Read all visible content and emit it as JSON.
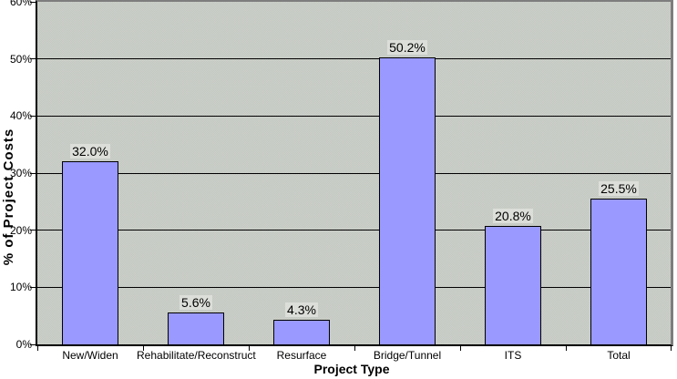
{
  "chart_data": {
    "type": "bar",
    "title": "",
    "xlabel": "Project Type",
    "ylabel": "% of Project Costs",
    "categories": [
      "New/Widen",
      "Rehabilitate/Reconstruct",
      "Resurface",
      "Bridge/Tunnel",
      "ITS",
      "Total"
    ],
    "values": [
      32.0,
      5.6,
      4.3,
      50.2,
      20.8,
      25.5
    ],
    "data_labels": [
      "32.0%",
      "5.6%",
      "4.3%",
      "50.2%",
      "20.8%",
      "25.5%"
    ],
    "y_ticks": [
      "0%",
      "10%",
      "20%",
      "30%",
      "40%",
      "50%",
      "60%"
    ],
    "y_tick_values": [
      0,
      10,
      20,
      30,
      40,
      50,
      60
    ],
    "gridline_values": [
      10,
      20,
      30,
      40,
      50
    ],
    "ylim": [
      0,
      60
    ],
    "grid": true,
    "legend": "none",
    "colors": {
      "bar_fill": "#9999FF",
      "bar_border": "#000000",
      "plot_bg": "#C9CCC5",
      "gridline": "#000000",
      "axis_line": "#000000",
      "chart_bg": "#FFFFFF",
      "text": "#000000"
    }
  }
}
